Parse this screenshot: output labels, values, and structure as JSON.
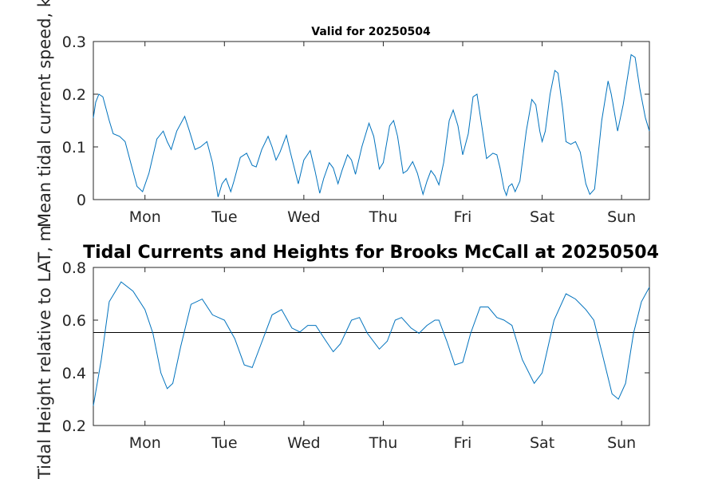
{
  "chart_data": [
    {
      "type": "line",
      "title": "Valid for 20250504",
      "ylabel": "Mean tidal current speed, kn",
      "ylim": [
        0,
        0.3
      ],
      "yticks": [
        "0",
        "0.1",
        "0.2",
        "0.3"
      ],
      "xlim": [
        -0.65,
        6.35
      ],
      "x_ticks": [
        {
          "x": 0,
          "label": "Mon"
        },
        {
          "x": 1,
          "label": "Tue"
        },
        {
          "x": 2,
          "label": "Wed"
        },
        {
          "x": 3,
          "label": "Thu"
        },
        {
          "x": 4,
          "label": "Fri"
        },
        {
          "x": 5,
          "label": "Sat"
        },
        {
          "x": 6,
          "label": "Sun"
        }
      ],
      "color": "#0072BD",
      "series": [
        {
          "points": [
            [
              -0.65,
              0.155
            ],
            [
              -0.62,
              0.185
            ],
            [
              -0.58,
              0.2
            ],
            [
              -0.53,
              0.195
            ],
            [
              -0.45,
              0.15
            ],
            [
              -0.4,
              0.125
            ],
            [
              -0.32,
              0.12
            ],
            [
              -0.25,
              0.11
            ],
            [
              -0.18,
              0.07
            ],
            [
              -0.1,
              0.025
            ],
            [
              -0.03,
              0.015
            ],
            [
              0.05,
              0.05
            ],
            [
              0.15,
              0.115
            ],
            [
              0.23,
              0.13
            ],
            [
              0.28,
              0.11
            ],
            [
              0.33,
              0.095
            ],
            [
              0.4,
              0.13
            ],
            [
              0.5,
              0.158
            ],
            [
              0.56,
              0.13
            ],
            [
              0.63,
              0.095
            ],
            [
              0.7,
              0.1
            ],
            [
              0.78,
              0.11
            ],
            [
              0.85,
              0.07
            ],
            [
              0.92,
              0.005
            ],
            [
              0.97,
              0.03
            ],
            [
              1.02,
              0.04
            ],
            [
              1.08,
              0.015
            ],
            [
              1.12,
              0.035
            ],
            [
              1.2,
              0.08
            ],
            [
              1.28,
              0.088
            ],
            [
              1.35,
              0.065
            ],
            [
              1.4,
              0.062
            ],
            [
              1.47,
              0.095
            ],
            [
              1.55,
              0.12
            ],
            [
              1.6,
              0.1
            ],
            [
              1.65,
              0.075
            ],
            [
              1.7,
              0.09
            ],
            [
              1.78,
              0.122
            ],
            [
              1.83,
              0.09
            ],
            [
              1.93,
              0.03
            ],
            [
              2.0,
              0.075
            ],
            [
              2.08,
              0.093
            ],
            [
              2.14,
              0.055
            ],
            [
              2.2,
              0.012
            ],
            [
              2.25,
              0.04
            ],
            [
              2.32,
              0.07
            ],
            [
              2.37,
              0.06
            ],
            [
              2.43,
              0.03
            ],
            [
              2.48,
              0.055
            ],
            [
              2.55,
              0.085
            ],
            [
              2.6,
              0.075
            ],
            [
              2.65,
              0.048
            ],
            [
              2.73,
              0.1
            ],
            [
              2.82,
              0.145
            ],
            [
              2.88,
              0.12
            ],
            [
              2.95,
              0.058
            ],
            [
              3.0,
              0.07
            ],
            [
              3.08,
              0.14
            ],
            [
              3.13,
              0.15
            ],
            [
              3.18,
              0.12
            ],
            [
              3.25,
              0.05
            ],
            [
              3.3,
              0.055
            ],
            [
              3.37,
              0.072
            ],
            [
              3.43,
              0.05
            ],
            [
              3.5,
              0.01
            ],
            [
              3.55,
              0.035
            ],
            [
              3.6,
              0.055
            ],
            [
              3.65,
              0.045
            ],
            [
              3.7,
              0.028
            ],
            [
              3.76,
              0.07
            ],
            [
              3.83,
              0.15
            ],
            [
              3.88,
              0.17
            ],
            [
              3.94,
              0.14
            ],
            [
              4.0,
              0.085
            ],
            [
              4.07,
              0.125
            ],
            [
              4.13,
              0.195
            ],
            [
              4.18,
              0.2
            ],
            [
              4.24,
              0.14
            ],
            [
              4.3,
              0.078
            ],
            [
              4.38,
              0.088
            ],
            [
              4.43,
              0.085
            ],
            [
              4.47,
              0.06
            ],
            [
              4.52,
              0.02
            ],
            [
              4.55,
              0.008
            ],
            [
              4.58,
              0.025
            ],
            [
              4.62,
              0.03
            ],
            [
              4.66,
              0.015
            ],
            [
              4.72,
              0.035
            ],
            [
              4.8,
              0.13
            ],
            [
              4.87,
              0.19
            ],
            [
              4.92,
              0.18
            ],
            [
              4.97,
              0.13
            ],
            [
              5.0,
              0.11
            ],
            [
              5.04,
              0.13
            ],
            [
              5.1,
              0.2
            ],
            [
              5.16,
              0.245
            ],
            [
              5.2,
              0.24
            ],
            [
              5.26,
              0.17
            ],
            [
              5.3,
              0.11
            ],
            [
              5.36,
              0.105
            ],
            [
              5.42,
              0.11
            ],
            [
              5.48,
              0.09
            ],
            [
              5.55,
              0.03
            ],
            [
              5.6,
              0.01
            ],
            [
              5.66,
              0.02
            ],
            [
              5.75,
              0.15
            ],
            [
              5.83,
              0.225
            ],
            [
              5.87,
              0.2
            ],
            [
              5.95,
              0.13
            ],
            [
              6.02,
              0.18
            ],
            [
              6.12,
              0.275
            ],
            [
              6.17,
              0.27
            ],
            [
              6.23,
              0.21
            ],
            [
              6.3,
              0.155
            ],
            [
              6.35,
              0.13
            ]
          ]
        }
      ]
    },
    {
      "type": "line",
      "title": "Tidal Currents and Heights for Brooks McCall at 20250504",
      "ylabel": "Tidal Height relative to LAT, m",
      "ylim": [
        0.2,
        0.8
      ],
      "yticks": [
        "0.2",
        "0.4",
        "0.6",
        "0.8"
      ],
      "xlim": [
        -0.65,
        6.35
      ],
      "x_ticks": [
        {
          "x": 0,
          "label": "Mon"
        },
        {
          "x": 1,
          "label": "Tue"
        },
        {
          "x": 2,
          "label": "Wed"
        },
        {
          "x": 3,
          "label": "Thu"
        },
        {
          "x": 4,
          "label": "Fri"
        },
        {
          "x": 5,
          "label": "Sat"
        },
        {
          "x": 6,
          "label": "Sun"
        }
      ],
      "reference_line": 0.553,
      "color": "#0072BD",
      "series": [
        {
          "points": [
            [
              -0.65,
              0.275
            ],
            [
              -0.55,
              0.45
            ],
            [
              -0.45,
              0.67
            ],
            [
              -0.3,
              0.745
            ],
            [
              -0.15,
              0.71
            ],
            [
              0.0,
              0.64
            ],
            [
              0.1,
              0.55
            ],
            [
              0.2,
              0.4
            ],
            [
              0.28,
              0.34
            ],
            [
              0.35,
              0.36
            ],
            [
              0.45,
              0.5
            ],
            [
              0.58,
              0.66
            ],
            [
              0.72,
              0.68
            ],
            [
              0.85,
              0.62
            ],
            [
              1.0,
              0.6
            ],
            [
              1.13,
              0.53
            ],
            [
              1.25,
              0.43
            ],
            [
              1.35,
              0.42
            ],
            [
              1.45,
              0.5
            ],
            [
              1.6,
              0.62
            ],
            [
              1.72,
              0.64
            ],
            [
              1.85,
              0.57
            ],
            [
              1.95,
              0.555
            ],
            [
              2.05,
              0.58
            ],
            [
              2.15,
              0.58
            ],
            [
              2.28,
              0.52
            ],
            [
              2.37,
              0.48
            ],
            [
              2.46,
              0.51
            ],
            [
              2.6,
              0.6
            ],
            [
              2.7,
              0.61
            ],
            [
              2.8,
              0.55
            ],
            [
              2.95,
              0.49
            ],
            [
              3.05,
              0.52
            ],
            [
              3.15,
              0.6
            ],
            [
              3.23,
              0.61
            ],
            [
              3.35,
              0.57
            ],
            [
              3.45,
              0.55
            ],
            [
              3.55,
              0.58
            ],
            [
              3.65,
              0.6
            ],
            [
              3.7,
              0.6
            ],
            [
              3.8,
              0.52
            ],
            [
              3.9,
              0.43
            ],
            [
              4.0,
              0.44
            ],
            [
              4.1,
              0.55
            ],
            [
              4.22,
              0.65
            ],
            [
              4.32,
              0.65
            ],
            [
              4.43,
              0.61
            ],
            [
              4.52,
              0.6
            ],
            [
              4.62,
              0.58
            ],
            [
              4.75,
              0.45
            ],
            [
              4.9,
              0.36
            ],
            [
              5.0,
              0.4
            ],
            [
              5.15,
              0.6
            ],
            [
              5.3,
              0.7
            ],
            [
              5.42,
              0.68
            ],
            [
              5.55,
              0.64
            ],
            [
              5.65,
              0.6
            ],
            [
              5.75,
              0.48
            ],
            [
              5.88,
              0.32
            ],
            [
              5.96,
              0.3
            ],
            [
              6.05,
              0.36
            ],
            [
              6.15,
              0.55
            ],
            [
              6.25,
              0.67
            ],
            [
              6.35,
              0.725
            ]
          ]
        }
      ]
    }
  ]
}
